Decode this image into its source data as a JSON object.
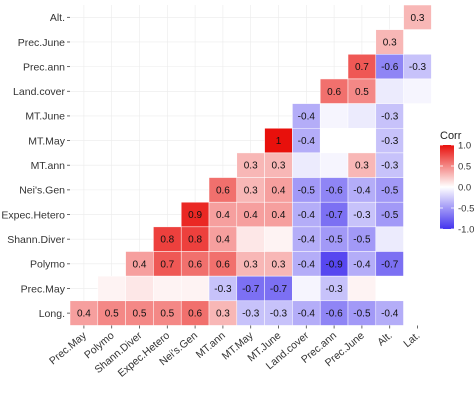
{
  "chart_data": {
    "type": "heatmap",
    "title": "",
    "xlabel": "",
    "ylabel": "",
    "x_labels": [
      "Prec.May",
      "Polymo",
      "Shann.Diver",
      "Expec.Hetero",
      "Nei's.Gen",
      "MT.ann",
      "MT.May",
      "MT.June",
      "Land.cover",
      "Prec.ann",
      "Prec.June",
      "Alt.",
      "Lat."
    ],
    "y_labels": [
      "Alt.",
      "Prec.June",
      "Prec.ann",
      "Land.cover",
      "MT.June",
      "MT.May",
      "MT.ann",
      "Nei's.Gen",
      "Expec.Hetero",
      "Shann.Diver",
      "Polymo",
      "Prec.May",
      "Long."
    ],
    "values": [
      [
        null,
        null,
        null,
        null,
        null,
        null,
        null,
        null,
        null,
        null,
        null,
        null,
        0.3
      ],
      [
        null,
        null,
        null,
        null,
        null,
        null,
        null,
        null,
        null,
        null,
        null,
        0.3,
        0
      ],
      [
        null,
        null,
        null,
        null,
        null,
        null,
        null,
        null,
        null,
        null,
        0.7,
        -0.6,
        -0.3
      ],
      [
        null,
        null,
        null,
        null,
        null,
        null,
        null,
        null,
        null,
        0.6,
        0.5,
        -0.1,
        -0.05
      ],
      [
        null,
        null,
        null,
        null,
        null,
        null,
        null,
        null,
        -0.4,
        -0.05,
        -0.1,
        -0.3,
        0
      ],
      [
        null,
        null,
        null,
        null,
        null,
        null,
        null,
        1,
        -0.4,
        0,
        0,
        -0.3,
        0
      ],
      [
        null,
        null,
        null,
        null,
        null,
        null,
        0.3,
        0.3,
        -0.1,
        -0.05,
        0.3,
        -0.3,
        0
      ],
      [
        null,
        null,
        null,
        null,
        null,
        0.6,
        0.3,
        0.4,
        -0.5,
        -0.6,
        -0.4,
        -0.5,
        0
      ],
      [
        null,
        null,
        null,
        null,
        0.9,
        0.4,
        0.4,
        0.4,
        -0.4,
        -0.7,
        -0.3,
        -0.5,
        0
      ],
      [
        null,
        null,
        null,
        0.8,
        0.8,
        0.4,
        0.1,
        0.05,
        -0.4,
        -0.5,
        -0.5,
        -0.1,
        0
      ],
      [
        null,
        null,
        0.4,
        0.7,
        0.6,
        0.6,
        0.3,
        0.3,
        -0.4,
        -0.9,
        -0.4,
        -0.7,
        0
      ],
      [
        null,
        0.05,
        0.1,
        0.05,
        0.05,
        -0.3,
        -0.7,
        -0.7,
        -0.05,
        -0.3,
        0.05,
        0,
        0
      ],
      [
        0.4,
        0.5,
        0.5,
        0.5,
        0.6,
        0.3,
        -0.3,
        -0.3,
        -0.4,
        -0.6,
        -0.5,
        -0.4,
        0
      ]
    ],
    "cell_labels": [
      [
        null,
        null,
        null,
        null,
        null,
        null,
        null,
        null,
        null,
        null,
        null,
        null,
        "0.3"
      ],
      [
        null,
        null,
        null,
        null,
        null,
        null,
        null,
        null,
        null,
        null,
        null,
        "0.3",
        null
      ],
      [
        null,
        null,
        null,
        null,
        null,
        null,
        null,
        null,
        null,
        null,
        "0.7",
        "-0.6",
        "-0.3"
      ],
      [
        null,
        null,
        null,
        null,
        null,
        null,
        null,
        null,
        null,
        "0.6",
        "0.5",
        null,
        null
      ],
      [
        null,
        null,
        null,
        null,
        null,
        null,
        null,
        null,
        "-0.4",
        null,
        null,
        "-0.3",
        null
      ],
      [
        null,
        null,
        null,
        null,
        null,
        null,
        null,
        "1",
        "-0.4",
        null,
        null,
        "-0.3",
        null
      ],
      [
        null,
        null,
        null,
        null,
        null,
        null,
        "0.3",
        "0.3",
        null,
        null,
        "0.3",
        "-0.3",
        null
      ],
      [
        null,
        null,
        null,
        null,
        null,
        "0.6",
        "0.3",
        "0.4",
        "-0.5",
        "-0.6",
        "-0.4",
        "-0.5",
        null
      ],
      [
        null,
        null,
        null,
        null,
        "0.9",
        "0.4",
        "0.4",
        "0.4",
        "-0.4",
        "-0.7",
        "-0.3",
        "-0.5",
        null
      ],
      [
        null,
        null,
        null,
        "0.8",
        "0.8",
        "0.4",
        null,
        null,
        "-0.4",
        "-0.5",
        "-0.5",
        null,
        null
      ],
      [
        null,
        null,
        "0.4",
        "0.7",
        "0.6",
        "0.6",
        "0.3",
        "0.3",
        "-0.4",
        "-0.9",
        "-0.4",
        "-0.7",
        null
      ],
      [
        null,
        null,
        null,
        null,
        null,
        "-0.3",
        "-0.7",
        "-0.7",
        null,
        "-0.3",
        null,
        null,
        null
      ],
      [
        "0.4",
        "0.5",
        "0.5",
        "0.5",
        "0.6",
        "0.3",
        "-0.3",
        "-0.3",
        "-0.4",
        "-0.6",
        "-0.5",
        "-0.4",
        null
      ]
    ],
    "color_scale": {
      "low": "#4433ee",
      "mid": "#ffffff",
      "high": "#e8100c",
      "limits": [
        -1,
        1
      ]
    },
    "legend": {
      "title": "Corr",
      "ticks": [
        "1.0",
        "0.5",
        "0.0",
        "-0.5",
        "-1.0"
      ],
      "tick_values": [
        1,
        0.5,
        0,
        -0.5,
        -1
      ],
      "position": "right"
    },
    "grid": true
  }
}
